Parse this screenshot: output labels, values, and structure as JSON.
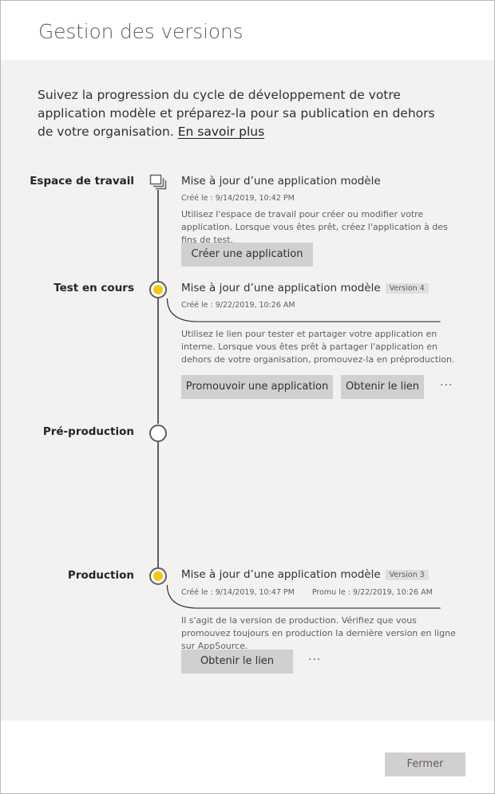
{
  "dialog": {
    "title": "Gestion des versions",
    "intro": "Suivez la progression du cycle de développement de votre application modèle et préparez-la pour sa publication en dehors de votre organisation.",
    "learn_more": "En savoir plus",
    "close_label": "Fermer"
  },
  "colors": {
    "active_dot": "#f2c811",
    "panel_bg": "#f3f2f1",
    "button_bg": "#d2d0ce"
  },
  "stages": {
    "workspace": {
      "label": "Espace de travail",
      "icon": "workspace-stack-icon",
      "entry_title": "Mise à jour d’une application modèle",
      "created": "Créé le : 9/14/2019, 10:42 PM",
      "description": "Utilisez l'espace de travail pour créer ou modifier votre application. Lorsque vous êtes prêt, créez l'application à des fins de test.",
      "primary_button": "Créer une application"
    },
    "test": {
      "label": "Test en cours",
      "entry_title": "Mise à jour d’une application modèle",
      "version": "Version 4",
      "created": "Créé le : 9/22/2019, 10:26 AM",
      "description": "Utilisez le lien pour tester et partager votre application en interne. Lorsque vous êtes prêt à partager l'application en dehors de votre organisation, promouvez-la en préproduction.",
      "primary_button": "Promouvoir une application",
      "secondary_button": "Obtenir le lien",
      "more": "···"
    },
    "preprod": {
      "label": "Pré-production"
    },
    "production": {
      "label": "Production",
      "entry_title": "Mise à jour d’une application modèle",
      "version": "Version 3",
      "created": "Créé le : 9/14/2019, 10:47 PM",
      "promoted": "Promu le : 9/22/2019, 10:26 AM",
      "description": "Il s'agit de la version de production. Vérifiez que vous promouvez toujours en production la dernière version en ligne sur AppSource.",
      "primary_button": "Obtenir le lien",
      "more": "···"
    }
  }
}
